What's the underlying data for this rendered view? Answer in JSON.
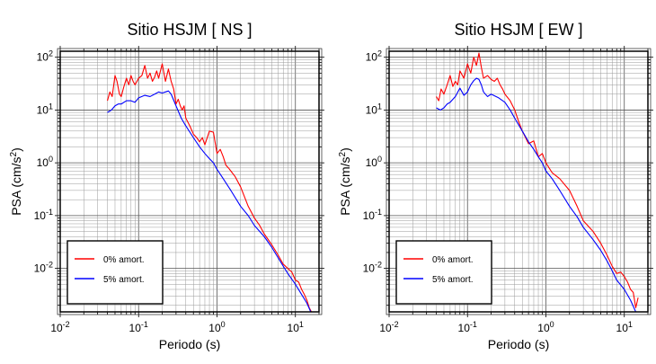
{
  "chart_data": [
    {
      "type": "line",
      "title": "Sitio HSJM [ NS ]",
      "xlabel": "Periodo (s)",
      "ylabel": "PSA (cm/s²)",
      "ylabel_base": "PSA (cm/s",
      "ylabel_sup": "2",
      "ylabel_tail": ")",
      "xscale": "log",
      "yscale": "log",
      "xlim": [
        0.01,
        20
      ],
      "ylim": [
        0.0015,
        130
      ],
      "xticks": [
        {
          "base": "10",
          "exp": "-2"
        },
        {
          "base": "10",
          "exp": "-1"
        },
        {
          "base": "10",
          "exp": "0"
        },
        {
          "base": "10",
          "exp": "1"
        }
      ],
      "yticks": [
        {
          "base": "10",
          "exp": "-2"
        },
        {
          "base": "10",
          "exp": "-1"
        },
        {
          "base": "10",
          "exp": "0"
        },
        {
          "base": "10",
          "exp": "1"
        },
        {
          "base": "10",
          "exp": "2"
        }
      ],
      "grid": true,
      "legend_position": "bottom-left",
      "series": [
        {
          "name": "0% amort.",
          "color": "#ff0000",
          "x": [
            0.04,
            0.043,
            0.046,
            0.05,
            0.053,
            0.057,
            0.06,
            0.065,
            0.07,
            0.075,
            0.08,
            0.085,
            0.09,
            0.1,
            0.11,
            0.12,
            0.13,
            0.14,
            0.15,
            0.16,
            0.17,
            0.18,
            0.2,
            0.22,
            0.24,
            0.26,
            0.28,
            0.3,
            0.32,
            0.34,
            0.36,
            0.38,
            0.4,
            0.45,
            0.5,
            0.55,
            0.6,
            0.65,
            0.7,
            0.8,
            0.9,
            1.0,
            1.1,
            1.2,
            1.3,
            1.4,
            1.5,
            1.7,
            2.0,
            2.5,
            3.0,
            3.5,
            4.0,
            5.0,
            6.0,
            7.0,
            8.0,
            9.0,
            10.0,
            11.0,
            12.0,
            13.0,
            14.0,
            15.0,
            16.0
          ],
          "y": [
            15,
            22,
            18,
            45,
            35,
            20,
            18,
            28,
            40,
            30,
            45,
            35,
            30,
            40,
            45,
            70,
            40,
            50,
            35,
            42,
            55,
            40,
            75,
            35,
            60,
            35,
            25,
            13,
            16,
            12,
            10,
            12,
            7,
            5,
            3.5,
            3,
            2.5,
            3,
            2.2,
            4,
            3.8,
            1.5,
            1.8,
            1.3,
            0.9,
            0.8,
            0.7,
            0.55,
            0.35,
            0.15,
            0.09,
            0.065,
            0.045,
            0.028,
            0.018,
            0.012,
            0.01,
            0.0085,
            0.006,
            0.0055,
            0.004,
            0.0032,
            0.0025,
            0.0018,
            0.0015
          ]
        },
        {
          "name": "5% amort.",
          "color": "#0000ff",
          "x": [
            0.04,
            0.045,
            0.05,
            0.055,
            0.06,
            0.07,
            0.08,
            0.09,
            0.1,
            0.12,
            0.14,
            0.16,
            0.18,
            0.2,
            0.22,
            0.24,
            0.26,
            0.3,
            0.35,
            0.4,
            0.5,
            0.6,
            0.7,
            0.8,
            0.9,
            1.0,
            1.2,
            1.5,
            2.0,
            2.5,
            3.0,
            4.0,
            5.0,
            6.0,
            7.0,
            8.0,
            10.0,
            12.0,
            14.0,
            16.0
          ],
          "y": [
            9,
            10,
            12,
            13,
            13,
            15,
            15,
            14,
            17,
            19,
            18,
            20,
            22,
            21,
            22,
            23,
            20,
            12,
            7,
            5,
            3,
            2,
            1.5,
            1.2,
            1.0,
            0.75,
            0.5,
            0.3,
            0.15,
            0.1,
            0.065,
            0.04,
            0.025,
            0.016,
            0.011,
            0.008,
            0.005,
            0.0032,
            0.0022,
            0.0014
          ]
        }
      ]
    },
    {
      "type": "line",
      "title": "Sitio HSJM [ EW ]",
      "xlabel": "Periodo (s)",
      "ylabel": "PSA (cm/s²)",
      "ylabel_base": "PSA (cm/s",
      "ylabel_sup": "2",
      "ylabel_tail": ")",
      "xscale": "log",
      "yscale": "log",
      "xlim": [
        0.01,
        20
      ],
      "ylim": [
        0.0015,
        130
      ],
      "xticks": [
        {
          "base": "10",
          "exp": "-2"
        },
        {
          "base": "10",
          "exp": "-1"
        },
        {
          "base": "10",
          "exp": "0"
        },
        {
          "base": "10",
          "exp": "1"
        }
      ],
      "yticks": [
        {
          "base": "10",
          "exp": "-2"
        },
        {
          "base": "10",
          "exp": "-1"
        },
        {
          "base": "10",
          "exp": "0"
        },
        {
          "base": "10",
          "exp": "1"
        },
        {
          "base": "10",
          "exp": "2"
        }
      ],
      "grid": true,
      "legend_position": "bottom-left",
      "series": [
        {
          "name": "0% amort.",
          "color": "#ff0000",
          "x": [
            0.04,
            0.043,
            0.046,
            0.05,
            0.055,
            0.06,
            0.065,
            0.07,
            0.075,
            0.08,
            0.09,
            0.1,
            0.11,
            0.12,
            0.13,
            0.14,
            0.15,
            0.16,
            0.18,
            0.2,
            0.22,
            0.24,
            0.26,
            0.28,
            0.3,
            0.35,
            0.4,
            0.45,
            0.5,
            0.6,
            0.7,
            0.8,
            0.9,
            1.0,
            1.2,
            1.5,
            2.0,
            2.5,
            3.0,
            4.0,
            5.0,
            6.0,
            7.0,
            8.0,
            9.0,
            10.0,
            11.0,
            12.0,
            13.0,
            14.0,
            15.0
          ],
          "y": [
            18,
            15,
            25,
            20,
            30,
            45,
            28,
            35,
            30,
            55,
            40,
            75,
            50,
            100,
            70,
            120,
            65,
            40,
            45,
            38,
            35,
            40,
            30,
            25,
            20,
            15,
            10,
            6,
            4,
            2.3,
            2.6,
            1.3,
            1.5,
            1.0,
            0.65,
            0.5,
            0.3,
            0.15,
            0.08,
            0.05,
            0.03,
            0.018,
            0.011,
            0.008,
            0.0085,
            0.007,
            0.0055,
            0.004,
            0.0035,
            0.0018,
            0.0028
          ]
        },
        {
          "name": "5% amort.",
          "color": "#0000ff",
          "x": [
            0.04,
            0.045,
            0.05,
            0.055,
            0.06,
            0.07,
            0.08,
            0.09,
            0.1,
            0.11,
            0.12,
            0.13,
            0.14,
            0.15,
            0.16,
            0.18,
            0.2,
            0.25,
            0.3,
            0.35,
            0.4,
            0.5,
            0.6,
            0.7,
            0.8,
            0.9,
            1.0,
            1.2,
            1.5,
            2.0,
            2.5,
            3.0,
            4.0,
            5.0,
            6.0,
            7.0,
            8.0,
            10.0,
            12.0,
            14.0
          ],
          "y": [
            11,
            10,
            11,
            13,
            14,
            18,
            26,
            19,
            22,
            30,
            36,
            40,
            38,
            30,
            22,
            18,
            20,
            17,
            14,
            10,
            7,
            4,
            2.5,
            1.8,
            1.3,
            1.0,
            0.7,
            0.5,
            0.3,
            0.15,
            0.095,
            0.06,
            0.035,
            0.022,
            0.014,
            0.009,
            0.006,
            0.004,
            0.0025,
            0.0015
          ]
        }
      ]
    }
  ]
}
